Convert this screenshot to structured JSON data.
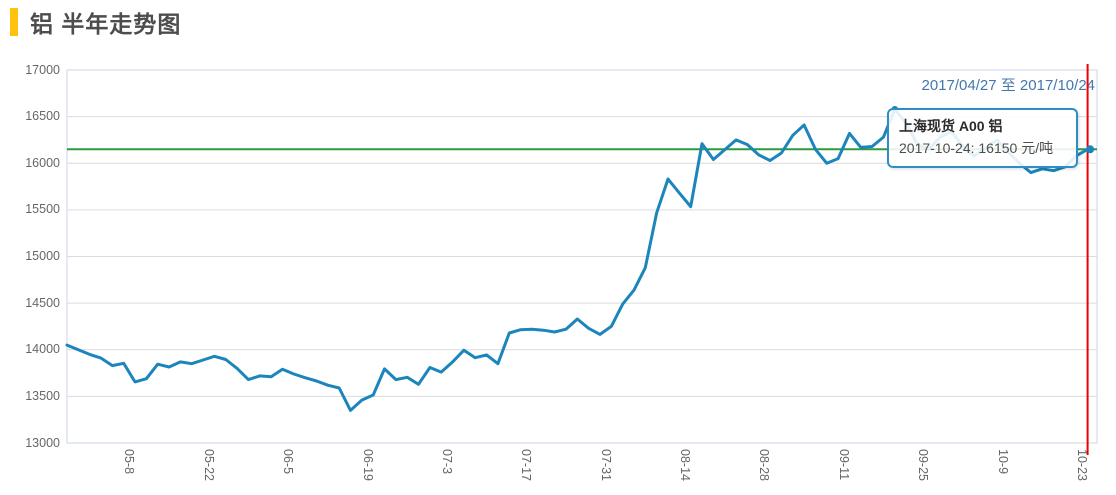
{
  "header": {
    "title": "铝 半年走势图"
  },
  "chart": {
    "date_range": "2017/04/27 至 2017/10/24",
    "tooltip": {
      "title": "上海现货 A00 铝",
      "value_line": "2017-10-24: 16150 元/吨"
    },
    "colors": {
      "line": "#1b85bc",
      "reference_green": "#2d9c3d",
      "crosshair_red": "#ef0000",
      "accent_yellow": "#ffc20e",
      "date_text": "#4577ad",
      "tooltip_border": "#2e8dc5",
      "gridline": "#dcdcdc",
      "plot_border": "#ccd6eb",
      "axis_text": "#666666"
    }
  },
  "chart_data": {
    "type": "line",
    "title": "铝 半年走势图",
    "series_name": "上海现货 A00 铝",
    "x_start_date": "2017-04-27",
    "x_end_date": "2017-10-24",
    "x_span_days": 180,
    "sample_interval_days": 2,
    "x_tick_labels": [
      "05-8",
      "05-22",
      "06-5",
      "06-19",
      "07-3",
      "07-17",
      "07-31",
      "08-14",
      "08-28",
      "09-11",
      "09-25",
      "10-9",
      "10-23"
    ],
    "x_tick_day_offsets": [
      11,
      25,
      39,
      53,
      67,
      81,
      95,
      109,
      123,
      137,
      151,
      165,
      179
    ],
    "y_ticks": [
      13000,
      13500,
      14000,
      14500,
      15000,
      15500,
      16000,
      16500,
      17000
    ],
    "ylim": [
      13000,
      17000
    ],
    "grid": "horizontal",
    "legend": "none",
    "reference_line_value": 16150,
    "crosshair_day_offset": 180,
    "peak_marker": {
      "day_offset": 146,
      "value": 16580
    },
    "last_point": {
      "date": "2017-10-24",
      "value": 16150
    },
    "values": [
      14050,
      14000,
      13950,
      13910,
      13830,
      13855,
      13655,
      13690,
      13845,
      13815,
      13870,
      13850,
      13890,
      13930,
      13895,
      13800,
      13680,
      13720,
      13710,
      13790,
      13740,
      13700,
      13665,
      13620,
      13590,
      13350,
      13460,
      13515,
      13795,
      13680,
      13705,
      13630,
      13810,
      13760,
      13870,
      13995,
      13915,
      13945,
      13850,
      14180,
      14215,
      14220,
      14210,
      14190,
      14220,
      14330,
      14230,
      14165,
      14250,
      14490,
      14640,
      14880,
      15470,
      15830,
      15680,
      15535,
      16210,
      16040,
      16145,
      16250,
      16200,
      16090,
      16030,
      16110,
      16300,
      16410,
      16150,
      16000,
      16050,
      16320,
      16170,
      16180,
      16280,
      16580,
      16430,
      16200,
      16150,
      16280,
      16340,
      16180,
      16080,
      16160,
      16250,
      16120,
      16000,
      15900,
      15940,
      15920,
      15960,
      16080,
      16150
    ]
  }
}
